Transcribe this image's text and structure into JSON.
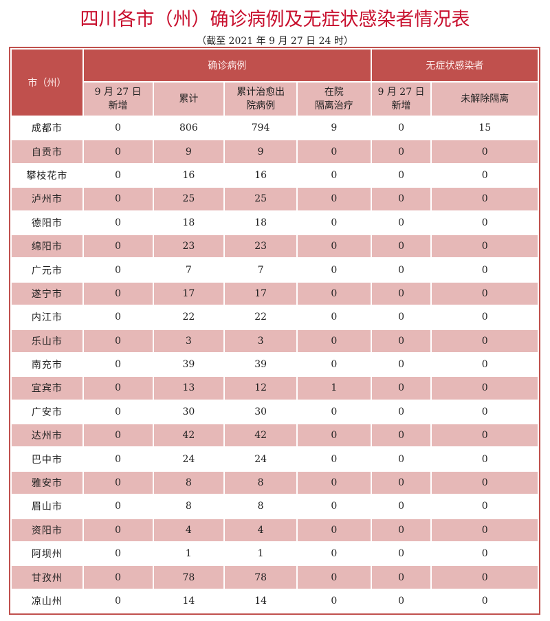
{
  "title": "四川各市（州）确诊病例及无症状感染者情况表",
  "subtitle": "（截至 2021 年 9 月 27 日 24 时）",
  "header": {
    "city": "市（州）",
    "confirmed": "确诊病例",
    "asymptomatic": "无症状感染者",
    "cols": [
      "9 月 27 日\n新增",
      "累计",
      "累计治愈出\n院病例",
      "在院\n隔离治疗",
      "9 月 27 日\n新增",
      "未解除隔离"
    ]
  },
  "colors": {
    "header": "#c0504d",
    "stripe": "#e6b8b7",
    "title": "#c8102e"
  },
  "rows": [
    [
      "成都市",
      "0",
      "806",
      "794",
      "9",
      "0",
      "15"
    ],
    [
      "自贡市",
      "0",
      "9",
      "9",
      "0",
      "0",
      "0"
    ],
    [
      "攀枝花市",
      "0",
      "16",
      "16",
      "0",
      "0",
      "0"
    ],
    [
      "泸州市",
      "0",
      "25",
      "25",
      "0",
      "0",
      "0"
    ],
    [
      "德阳市",
      "0",
      "18",
      "18",
      "0",
      "0",
      "0"
    ],
    [
      "绵阳市",
      "0",
      "23",
      "23",
      "0",
      "0",
      "0"
    ],
    [
      "广元市",
      "0",
      "7",
      "7",
      "0",
      "0",
      "0"
    ],
    [
      "遂宁市",
      "0",
      "17",
      "17",
      "0",
      "0",
      "0"
    ],
    [
      "内江市",
      "0",
      "22",
      "22",
      "0",
      "0",
      "0"
    ],
    [
      "乐山市",
      "0",
      "3",
      "3",
      "0",
      "0",
      "0"
    ],
    [
      "南充市",
      "0",
      "39",
      "39",
      "0",
      "0",
      "0"
    ],
    [
      "宜宾市",
      "0",
      "13",
      "12",
      "1",
      "0",
      "0"
    ],
    [
      "广安市",
      "0",
      "30",
      "30",
      "0",
      "0",
      "0"
    ],
    [
      "达州市",
      "0",
      "42",
      "42",
      "0",
      "0",
      "0"
    ],
    [
      "巴中市",
      "0",
      "24",
      "24",
      "0",
      "0",
      "0"
    ],
    [
      "雅安市",
      "0",
      "8",
      "8",
      "0",
      "0",
      "0"
    ],
    [
      "眉山市",
      "0",
      "8",
      "8",
      "0",
      "0",
      "0"
    ],
    [
      "资阳市",
      "0",
      "4",
      "4",
      "0",
      "0",
      "0"
    ],
    [
      "阿坝州",
      "0",
      "1",
      "1",
      "0",
      "0",
      "0"
    ],
    [
      "甘孜州",
      "0",
      "78",
      "78",
      "0",
      "0",
      "0"
    ],
    [
      "凉山州",
      "0",
      "14",
      "14",
      "0",
      "0",
      "0"
    ]
  ]
}
